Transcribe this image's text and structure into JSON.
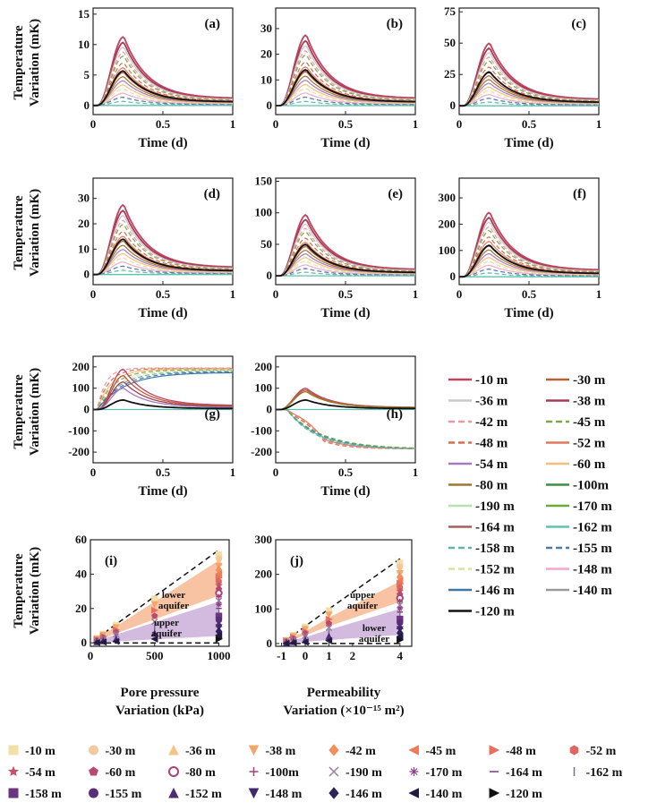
{
  "chart_data": {
    "type": "line",
    "ylabel": [
      "Temperature",
      "Variation (mK)"
    ],
    "x_time_label": "Time (d)",
    "panels_time": [
      {
        "label": "(a)",
        "xlim": [
          0,
          1
        ],
        "ylim": [
          -1.5,
          16
        ],
        "yticks": [
          0,
          5,
          10,
          15
        ],
        "xticks": [
          "0",
          "0.5",
          "1"
        ],
        "peak_outer": 11.3,
        "peak_black": 5.7
      },
      {
        "label": "(b)",
        "xlim": [
          0,
          1
        ],
        "ylim": [
          -3.5,
          38
        ],
        "yticks": [
          0,
          10,
          20,
          30
        ],
        "xticks": [
          "0",
          "0.5",
          "1"
        ],
        "peak_outer": 27.5,
        "peak_black": 14
      },
      {
        "label": "(c)",
        "xlim": [
          0,
          1
        ],
        "ylim": [
          -7,
          78
        ],
        "yticks": [
          0,
          25,
          50,
          75
        ],
        "xticks": [
          "0",
          "0.5",
          "1"
        ],
        "peak_outer": 50,
        "peak_black": 27
      },
      {
        "label": "(d)",
        "xlim": [
          0,
          1
        ],
        "ylim": [
          -4,
          38
        ],
        "yticks": [
          0,
          10,
          20,
          30
        ],
        "xticks": [
          "0",
          "0.5",
          "1"
        ],
        "peak_outer": 27.5,
        "peak_black": 14
      },
      {
        "label": "(e)",
        "xlim": [
          0,
          1
        ],
        "ylim": [
          -14,
          155
        ],
        "yticks": [
          0,
          50,
          100,
          150
        ],
        "xticks": [
          "0",
          "0.5",
          "1"
        ],
        "peak_outer": 97,
        "peak_black": 50
      },
      {
        "label": "(f)",
        "xlim": [
          0,
          1
        ],
        "ylim": [
          -30,
          375
        ],
        "yticks": [
          0,
          100,
          200,
          300
        ],
        "xticks": [
          "0",
          "0.5",
          "1"
        ],
        "peak_outer": 245,
        "peak_black": 120
      },
      {
        "label": "(g)",
        "xlim": [
          0,
          1
        ],
        "ylim": [
          -250,
          250
        ],
        "yticks": [
          -200,
          -100,
          0,
          100,
          200
        ],
        "xticks": [
          "0",
          "0.5",
          "1"
        ],
        "plateau": 195,
        "peak_black": 45
      },
      {
        "label": "(h)",
        "xlim": [
          0,
          1
        ],
        "ylim": [
          -250,
          250
        ],
        "yticks": [
          -200,
          -100,
          0,
          100,
          200
        ],
        "xticks": [
          "0",
          "0.5",
          "1"
        ],
        "peak_outer": 100,
        "floor": -185,
        "peak_black": 45
      }
    ],
    "panel_i": {
      "label": "(i)",
      "xlabel": [
        "Pore pressure",
        "Variation (kPa)"
      ],
      "xlim": [
        0,
        1080
      ],
      "ylim": [
        -2,
        60
      ],
      "xticks": [
        0,
        500,
        1000
      ],
      "yticks": [
        0,
        20,
        40,
        60
      ],
      "x": [
        50,
        100,
        200,
        500,
        1000
      ],
      "upper_bound": [
        2.7,
        5.4,
        10.8,
        27,
        54
      ],
      "lower_bound": [
        0,
        0,
        0,
        0,
        0
      ],
      "lower_aquifer_band": {
        "low": [
          1.4,
          2.7,
          5.5,
          13.7,
          27.5
        ],
        "high": [
          2.4,
          4.8,
          9.6,
          24,
          48
        ]
      },
      "upper_aquifer_band": {
        "low": [
          0.2,
          0.4,
          0.8,
          2,
          4
        ],
        "high": [
          1.2,
          2.4,
          4.8,
          12,
          24
        ]
      },
      "annotations": [
        [
          "lower",
          "aquifer"
        ],
        [
          "upper",
          "aquifer"
        ]
      ]
    },
    "panel_j": {
      "label": "(j)",
      "xlabel": [
        "Permeability",
        "Variation (×10⁻¹⁵ m²)"
      ],
      "xlim": [
        -1.25,
        4.5
      ],
      "ylim": [
        -8,
        300
      ],
      "xticks": [
        -1,
        0,
        1,
        2,
        4
      ],
      "xtick_labels": [
        "-1",
        "0",
        "1",
        "2",
        "4"
      ],
      "yticks": [
        0,
        100,
        200,
        300
      ],
      "x": [
        -0.8,
        -0.5,
        0,
        1,
        4
      ],
      "upper_bound": [
        10,
        25,
        50,
        100,
        245
      ],
      "lower_bound": [
        0,
        0,
        0,
        0,
        0
      ],
      "upper_aquifer_band": {
        "low": [
          5,
          12,
          24,
          50,
          120
        ],
        "high": [
          8,
          20,
          35,
          75,
          180
        ]
      },
      "lower_aquifer_band": {
        "low": [
          1,
          2,
          5,
          10,
          25
        ],
        "high": [
          4,
          10,
          18,
          40,
          100
        ]
      },
      "annotations": [
        [
          "upper",
          "aquifer"
        ],
        [
          "lower",
          "aquifer"
        ]
      ]
    },
    "line_legend": [
      {
        "name": "-10 m",
        "color": "#c2435f",
        "dash": false
      },
      {
        "name": "-30 m",
        "color": "#b5603a",
        "dash": false
      },
      {
        "name": "-36 m",
        "color": "#c8c8c8",
        "dash": false
      },
      {
        "name": "-38 m",
        "color": "#a83b55",
        "dash": false
      },
      {
        "name": "-42 m",
        "color": "#e99aa0",
        "dash": true
      },
      {
        "name": "-45 m",
        "color": "#7aa84a",
        "dash": true
      },
      {
        "name": "-48 m",
        "color": "#e06a4e",
        "dash": true
      },
      {
        "name": "-52 m",
        "color": "#e2785a",
        "dash": false
      },
      {
        "name": "-54 m",
        "color": "#a57bc0",
        "dash": false
      },
      {
        "name": "-60 m",
        "color": "#f2c07b",
        "dash": false
      },
      {
        "name": "-80 m",
        "color": "#a0762e",
        "dash": false
      },
      {
        "name": "-100m",
        "color": "#3b8f45",
        "dash": false
      },
      {
        "name": "-190 m",
        "color": "#b8dfb1",
        "dash": false
      },
      {
        "name": "-170 m",
        "color": "#6ea93a",
        "dash": false
      },
      {
        "name": "-164 m",
        "color": "#a3615a",
        "dash": false
      },
      {
        "name": "-162 m",
        "color": "#5ec2b0",
        "dash": false
      },
      {
        "name": "-158 m",
        "color": "#5fb8a6",
        "dash": true
      },
      {
        "name": "-155 m",
        "color": "#4b79a8",
        "dash": true
      },
      {
        "name": "-152 m",
        "color": "#dfe0a0",
        "dash": true
      },
      {
        "name": "-148 m",
        "color": "#f2a9cc",
        "dash": false
      },
      {
        "name": "-146 m",
        "color": "#3f78a8",
        "dash": false
      },
      {
        "name": "-140 m",
        "color": "#9a9a9a",
        "dash": false
      },
      {
        "name": "-120 m",
        "color": "#111111",
        "dash": false
      }
    ],
    "marker_legend": [
      {
        "name": "-10 m",
        "color": "#f2e0a8",
        "marker": "square"
      },
      {
        "name": "-30 m",
        "color": "#f4c9a0",
        "marker": "circle"
      },
      {
        "name": "-36 m",
        "color": "#f6c287",
        "marker": "tri-up"
      },
      {
        "name": "-38 m",
        "color": "#f4a56c",
        "marker": "tri-down"
      },
      {
        "name": "-42 m",
        "color": "#f2905c",
        "marker": "diamond"
      },
      {
        "name": "-45 m",
        "color": "#ee7c5a",
        "marker": "tri-left"
      },
      {
        "name": "-48 m",
        "color": "#e7715c",
        "marker": "tri-right"
      },
      {
        "name": "-52 m",
        "color": "#e16560",
        "marker": "hexagon"
      },
      {
        "name": "-54 m",
        "color": "#c9506b",
        "marker": "star"
      },
      {
        "name": "-60 m",
        "color": "#b74a71",
        "marker": "pentagon"
      },
      {
        "name": "-80 m",
        "color": "#a94276",
        "marker": "half-circle"
      },
      {
        "name": "-100m",
        "color": "#a0407c",
        "marker": "plus"
      },
      {
        "name": "-190 m",
        "color": "#9a7fa0",
        "marker": "x"
      },
      {
        "name": "-170 m",
        "color": "#8e3f87",
        "marker": "asterisk"
      },
      {
        "name": "-164 m",
        "color": "#7a3b86",
        "marker": "hline"
      },
      {
        "name": "-162 m",
        "color": "#7a6f90",
        "marker": "vline"
      },
      {
        "name": "-158 m",
        "color": "#6b357f",
        "marker": "square"
      },
      {
        "name": "-155 m",
        "color": "#5a2f79",
        "marker": "circle"
      },
      {
        "name": "-152 m",
        "color": "#4d2c74",
        "marker": "tri-up"
      },
      {
        "name": "-148 m",
        "color": "#40286c",
        "marker": "tri-down"
      },
      {
        "name": "-146 m",
        "color": "#2f2258",
        "marker": "diamond"
      },
      {
        "name": "-140 m",
        "color": "#221a44",
        "marker": "tri-left"
      },
      {
        "name": "-120 m",
        "color": "#111111",
        "marker": "tri-right"
      }
    ]
  }
}
